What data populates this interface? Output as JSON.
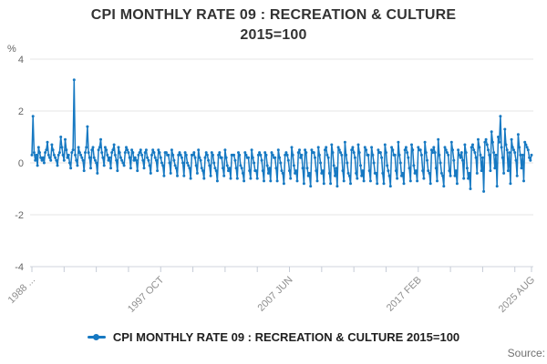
{
  "title": {
    "line1": "CPI MONTHLY RATE 09 : RECREATION & CULTURE",
    "line2": "2015=100"
  },
  "legend": {
    "label": "CPI MONTHLY RATE 09 : RECREATION & CULTURE 2015=100"
  },
  "source_label": "Source:",
  "chart_data": {
    "type": "line",
    "title": "CPI MONTHLY RATE 09 : RECREATION & CULTURE 2015=100",
    "xlabel": "",
    "ylabel": "%",
    "ylim": [
      -4,
      4
    ],
    "yticks": [
      4,
      2,
      0,
      -2,
      -4
    ],
    "ytick_labels": [
      "4",
      "2",
      "0",
      "-2",
      "-4"
    ],
    "grid": true,
    "legend_position": "bottom",
    "x_start": "1988 FEB",
    "x_end": "2025 AUG",
    "x_unit": "month",
    "xtick_labels": [
      "1988 ...",
      "1997 OCT",
      "2007 JUN",
      "2017 FEB",
      "2025 AUG"
    ],
    "xtick_label_months": [
      0,
      116,
      232,
      348,
      450
    ],
    "xticks_months": [
      0,
      29,
      58,
      87,
      116,
      145,
      174,
      203,
      232,
      261,
      290,
      319,
      348,
      377,
      406,
      435,
      450
    ],
    "line_color": "#1779c2",
    "grid_color": "#e6e6e6",
    "axis_color": "#d0d5dc",
    "tick_color": "#c5cbd6",
    "values": [
      0.3,
      1.8,
      0.4,
      0.1,
      0.3,
      -0.1,
      0.6,
      0.4,
      0.2,
      0.1,
      0.2,
      0.0,
      0.4,
      0.5,
      0.8,
      0.3,
      0.2,
      0.1,
      0.7,
      0.5,
      0.3,
      0.2,
      0.1,
      -0.1,
      0.3,
      0.4,
      1.0,
      0.6,
      0.3,
      0.1,
      0.9,
      0.5,
      0.2,
      0.3,
      0.0,
      -0.2,
      0.4,
      0.5,
      3.2,
      0.3,
      0.1,
      -0.1,
      0.6,
      0.4,
      0.3,
      0.2,
      0.1,
      -0.3,
      0.4,
      0.6,
      1.4,
      0.4,
      0.2,
      -0.2,
      0.5,
      0.6,
      0.2,
      0.1,
      0.0,
      -0.4,
      0.5,
      0.6,
      0.9,
      0.4,
      0.2,
      -0.1,
      0.6,
      0.5,
      0.3,
      0.1,
      0.2,
      -0.2,
      0.4,
      0.5,
      0.7,
      0.3,
      0.1,
      -0.3,
      0.6,
      0.4,
      0.2,
      0.1,
      0.0,
      -0.1,
      0.4,
      0.6,
      0.5,
      0.4,
      0.2,
      -0.2,
      0.5,
      0.4,
      0.1,
      0.2,
      0.1,
      -0.3,
      0.3,
      0.4,
      0.5,
      0.3,
      0.1,
      -0.2,
      0.4,
      0.5,
      0.2,
      0.1,
      -0.1,
      -0.4,
      0.3,
      0.5,
      0.4,
      0.2,
      0.1,
      -0.3,
      0.5,
      0.4,
      0.2,
      0.0,
      -0.1,
      -0.5,
      0.4,
      0.4,
      0.3,
      0.3,
      0.0,
      -0.4,
      0.5,
      0.3,
      0.1,
      -0.1,
      -0.2,
      -0.5,
      0.3,
      0.4,
      0.3,
      0.2,
      0.0,
      -0.5,
      0.4,
      0.3,
      0.0,
      -0.1,
      -0.2,
      -0.6,
      0.3,
      0.3,
      0.4,
      0.2,
      -0.1,
      -0.4,
      0.5,
      0.2,
      0.1,
      -0.2,
      -0.3,
      -0.6,
      0.2,
      0.4,
      0.3,
      0.1,
      -0.1,
      -0.5,
      0.4,
      0.3,
      0.0,
      -0.2,
      -0.3,
      -0.7,
      0.3,
      0.4,
      0.2,
      0.2,
      -0.2,
      -0.5,
      0.5,
      0.2,
      -0.1,
      -0.3,
      -0.2,
      -0.6,
      0.3,
      0.3,
      0.3,
      0.1,
      -0.2,
      -0.6,
      0.4,
      0.3,
      -0.1,
      -0.2,
      -0.4,
      -0.7,
      0.4,
      0.3,
      0.2,
      0.2,
      -0.3,
      -0.6,
      0.5,
      0.2,
      0.0,
      -0.3,
      -0.3,
      -0.6,
      0.3,
      0.4,
      0.3,
      0.1,
      -0.3,
      -0.7,
      0.4,
      0.3,
      -0.1,
      -0.4,
      -0.2,
      -0.7,
      0.4,
      0.3,
      0.2,
      0.2,
      -0.2,
      -0.7,
      0.5,
      0.2,
      0.0,
      -0.3,
      -0.4,
      -0.8,
      0.3,
      0.4,
      0.3,
      0.1,
      -0.3,
      -0.6,
      0.6,
      0.3,
      -0.1,
      -0.4,
      -0.3,
      -0.7,
      0.4,
      0.5,
      0.2,
      0.3,
      -0.2,
      -0.8,
      0.5,
      0.4,
      -0.2,
      -0.5,
      -0.4,
      -0.9,
      0.5,
      0.4,
      0.4,
      0.2,
      -0.3,
      -0.7,
      0.6,
      0.3,
      0.0,
      -0.4,
      -0.3,
      -0.8,
      0.5,
      0.6,
      0.3,
      0.2,
      -0.4,
      -0.8,
      0.7,
      0.4,
      -0.1,
      -0.5,
      -0.2,
      -0.9,
      0.6,
      0.5,
      0.4,
      0.3,
      -0.3,
      -0.7,
      0.8,
      0.3,
      0.0,
      -0.4,
      -0.5,
      -0.8,
      0.5,
      0.6,
      0.4,
      0.2,
      -0.4,
      -0.6,
      0.7,
      0.4,
      -0.1,
      -0.5,
      -0.3,
      -0.7,
      0.6,
      0.5,
      0.3,
      0.3,
      -0.3,
      -0.7,
      0.6,
      0.3,
      0.0,
      -0.4,
      -0.4,
      -0.8,
      0.5,
      0.4,
      0.4,
      0.2,
      -0.4,
      -0.8,
      0.7,
      0.4,
      -0.1,
      -0.3,
      -0.5,
      -0.9,
      0.6,
      0.5,
      0.3,
      0.3,
      -0.3,
      -0.6,
      0.8,
      0.3,
      0.0,
      -0.5,
      -0.4,
      -0.8,
      0.5,
      0.6,
      0.4,
      0.2,
      -0.2,
      -0.7,
      0.7,
      0.5,
      -0.1,
      -0.4,
      -0.3,
      -0.7,
      0.6,
      0.5,
      0.5,
      0.3,
      -0.3,
      -0.6,
      0.8,
      0.4,
      0.1,
      -0.3,
      -0.4,
      -0.8,
      0.5,
      0.4,
      0.6,
      0.4,
      -0.2,
      -0.7,
      0.9,
      0.3,
      0.0,
      -0.4,
      -0.5,
      -0.9,
      0.6,
      0.5,
      0.4,
      0.3,
      -0.3,
      -0.5,
      0.8,
      0.5,
      0.1,
      -0.5,
      -0.3,
      -0.8,
      0.5,
      0.3,
      0.2,
      0.4,
      0.1,
      -0.6,
      0.7,
      0.4,
      -0.2,
      -0.6,
      -0.4,
      -1.0,
      0.6,
      0.7,
      0.5,
      0.4,
      0.2,
      -0.4,
      0.9,
      0.6,
      0.3,
      -0.3,
      0.2,
      -1.1,
      0.8,
      0.9,
      0.7,
      0.5,
      0.3,
      -0.3,
      1.2,
      0.8,
      0.4,
      -0.2,
      0.3,
      -0.9,
      1.0,
      0.8,
      1.8,
      0.6,
      0.2,
      -0.4,
      1.3,
      0.7,
      0.5,
      -0.3,
      0.4,
      -0.8,
      0.9,
      0.6,
      0.5,
      0.4,
      0.1,
      -0.5,
      1.1,
      0.6,
      0.3,
      -0.2,
      0.3,
      -0.7,
      0.8,
      0.7,
      0.6,
      0.5,
      0.2,
      0.1,
      0.3
    ]
  }
}
